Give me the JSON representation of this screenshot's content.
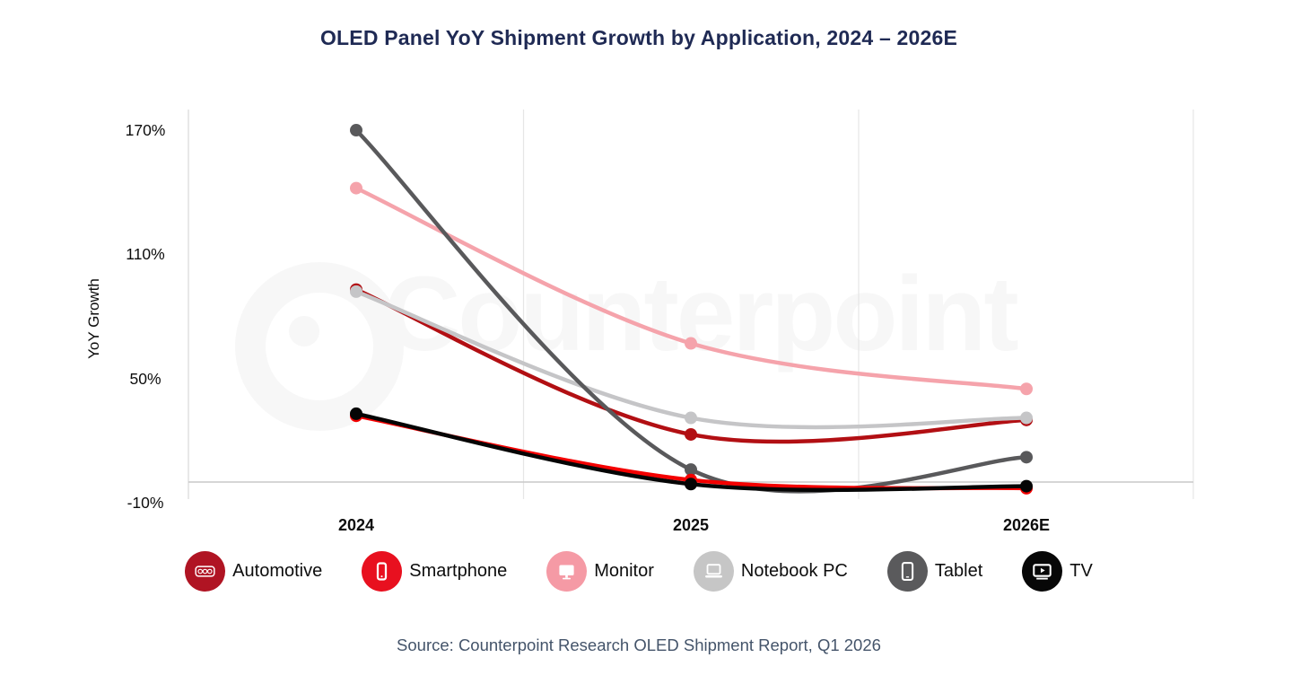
{
  "watermark": "Counterpoint",
  "source": "Source: Counterpoint Research OLED Shipment Report, Q1 2026",
  "colors": {
    "title": "#1F2A54",
    "source": "#44546A",
    "axis_text": "#0D0D0D",
    "grid": "#E6E6E6",
    "axis_line": "#DCDCDC",
    "zero_line": "#C9C9C9",
    "watermark": "#F7F7F7"
  },
  "chart_data": {
    "type": "line",
    "title": "OLED Panel YoY Shipment Growth by Application, 2024 – 2026E",
    "ylabel": "YoY Growth",
    "xlabel": "",
    "categories": [
      "2024",
      "2025",
      "2026E"
    ],
    "yticks": [
      "170%",
      "110%",
      "50%",
      "-10%"
    ],
    "ytick_values": [
      170,
      110,
      50,
      -10
    ],
    "ylim": [
      -10,
      170
    ],
    "grid": "vertical lines at category band boundaries; horizontal zero line",
    "legend_position": "bottom",
    "line_style": "smooth spline with round point markers",
    "series": [
      {
        "name": "Automotive",
        "color": "#B20F13",
        "values": [
          93,
          23,
          30
        ]
      },
      {
        "name": "Smartphone",
        "color": "#F40000",
        "values": [
          32,
          1,
          -3
        ]
      },
      {
        "name": "Monitor",
        "color": "#F5A3AB",
        "values": [
          142,
          67,
          45
        ]
      },
      {
        "name": "Notebook PC",
        "color": "#C5C5C7",
        "values": [
          92,
          31,
          31
        ]
      },
      {
        "name": "Tablet",
        "color": "#59595B",
        "values": [
          170,
          6,
          12
        ]
      },
      {
        "name": "TV",
        "color": "#050505",
        "values": [
          33,
          -1,
          -2
        ]
      }
    ]
  },
  "legend": {
    "items": [
      {
        "label": "Automotive",
        "circle_color": "#B01423",
        "icon": "car-dashboard-icon"
      },
      {
        "label": "Smartphone",
        "circle_color": "#E8101F",
        "icon": "smartphone-icon"
      },
      {
        "label": "Monitor",
        "circle_color": "#F59AA5",
        "icon": "monitor-icon"
      },
      {
        "label": "Notebook PC",
        "circle_color": "#C6C6C6",
        "icon": "laptop-icon"
      },
      {
        "label": "Tablet",
        "circle_color": "#5A5A5C",
        "icon": "tablet-icon"
      },
      {
        "label": "TV",
        "circle_color": "#070707",
        "icon": "tv-icon"
      }
    ]
  }
}
